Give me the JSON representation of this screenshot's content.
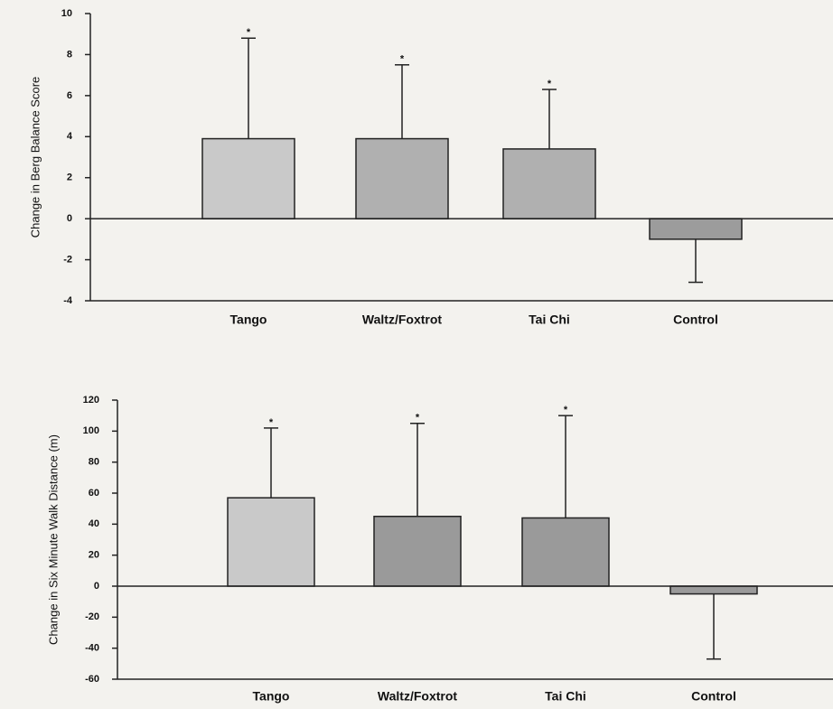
{
  "chart_data": [
    {
      "type": "bar",
      "y_label": "Change in Berg Balance Score",
      "categories": [
        "Tango",
        "Waltz/Foxtrot",
        "Tai Chi",
        "Control"
      ],
      "values": [
        3.9,
        3.9,
        3.4,
        -1.0
      ],
      "errors": [
        4.9,
        3.6,
        2.9,
        2.1
      ],
      "annotations": [
        "*",
        "*",
        "*",
        null
      ],
      "colors": [
        "#c9c9c9",
        "#b0b0b0",
        "#b0b0b0",
        "#9c9c9c"
      ],
      "ylim": [
        -4,
        10
      ],
      "yticks": [
        -4,
        -2,
        0,
        2,
        4,
        6,
        8,
        10
      ]
    },
    {
      "type": "bar",
      "y_label": "Change in Six Minute Walk Distance (m)",
      "categories": [
        "Tango",
        "Waltz/Foxtrot",
        "Tai Chi",
        "Control"
      ],
      "values": [
        57,
        45,
        44,
        -5
      ],
      "errors": [
        45,
        60,
        66,
        42
      ],
      "annotations": [
        "*",
        "*",
        "*",
        null
      ],
      "colors": [
        "#c9c9c9",
        "#9a9a9a",
        "#9a9a9a",
        "#9a9a9a"
      ],
      "ylim": [
        -60,
        120
      ],
      "yticks": [
        -60,
        -40,
        -20,
        0,
        20,
        40,
        60,
        80,
        100,
        120
      ]
    }
  ]
}
